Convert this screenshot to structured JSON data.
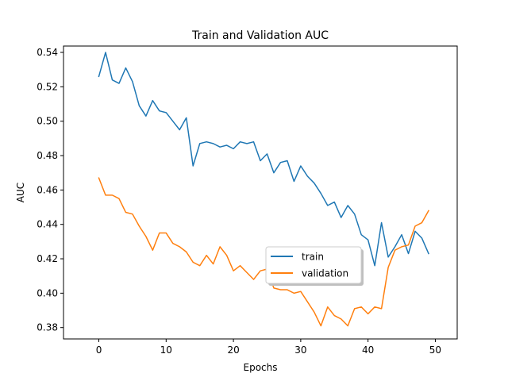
{
  "chart_data": {
    "type": "line",
    "title": "Train and Validation AUC",
    "xlabel": "Epochs",
    "ylabel": "AUC",
    "xlim": [
      -5.25,
      53.25
    ],
    "ylim": [
      0.3734,
      0.5437
    ],
    "xticks": [
      0,
      10,
      20,
      30,
      40,
      50
    ],
    "yticks": [
      0.38,
      0.4,
      0.42,
      0.44,
      0.46,
      0.48,
      0.5,
      0.52,
      0.54
    ],
    "grid": false,
    "legend_position": "center-right",
    "x": [
      0,
      1,
      2,
      3,
      4,
      5,
      6,
      7,
      8,
      9,
      10,
      11,
      12,
      13,
      14,
      15,
      16,
      17,
      18,
      19,
      20,
      21,
      22,
      23,
      24,
      25,
      26,
      27,
      28,
      29,
      30,
      31,
      32,
      33,
      34,
      35,
      36,
      37,
      38,
      39,
      40,
      41,
      42,
      43,
      44,
      45,
      46,
      47,
      48,
      49
    ],
    "series": [
      {
        "name": "train",
        "color": "#1f77b4",
        "values": [
          0.526,
          0.54,
          0.524,
          0.522,
          0.531,
          0.523,
          0.509,
          0.503,
          0.512,
          0.506,
          0.505,
          0.5,
          0.495,
          0.502,
          0.474,
          0.487,
          0.488,
          0.487,
          0.485,
          0.486,
          0.484,
          0.488,
          0.487,
          0.488,
          0.477,
          0.481,
          0.47,
          0.476,
          0.477,
          0.465,
          0.474,
          0.468,
          0.464,
          0.458,
          0.451,
          0.453,
          0.444,
          0.451,
          0.446,
          0.434,
          0.431,
          0.416,
          0.441,
          0.421,
          0.427,
          0.434,
          0.423,
          0.436,
          0.432,
          0.423
        ]
      },
      {
        "name": "validation",
        "color": "#ff7f0e",
        "values": [
          0.467,
          0.457,
          0.457,
          0.455,
          0.447,
          0.446,
          0.439,
          0.433,
          0.425,
          0.435,
          0.435,
          0.429,
          0.427,
          0.424,
          0.418,
          0.416,
          0.422,
          0.417,
          0.427,
          0.422,
          0.413,
          0.416,
          0.412,
          0.408,
          0.413,
          0.414,
          0.403,
          0.402,
          0.402,
          0.4,
          0.401,
          0.395,
          0.389,
          0.381,
          0.392,
          0.387,
          0.385,
          0.381,
          0.391,
          0.392,
          0.388,
          0.392,
          0.391,
          0.415,
          0.425,
          0.427,
          0.428,
          0.439,
          0.441,
          0.448
        ]
      }
    ]
  }
}
